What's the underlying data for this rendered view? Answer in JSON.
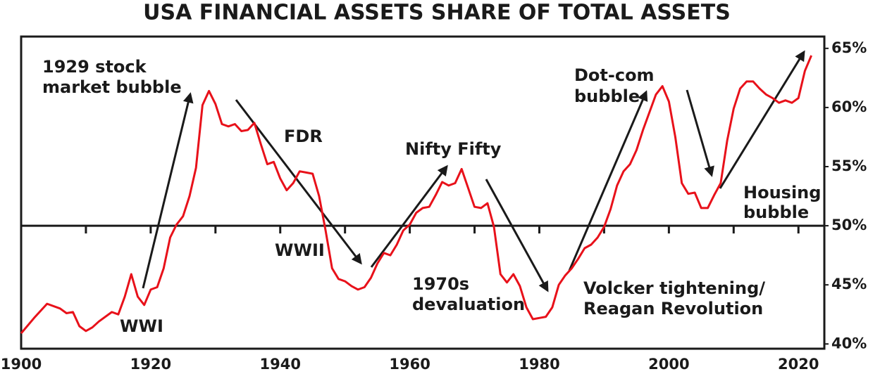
{
  "chart_data": {
    "type": "line",
    "title": "USA FINANCIAL ASSETS SHARE OF TOTAL ASSETS",
    "x": [
      1900,
      1902,
      1904,
      1906,
      1907,
      1908,
      1909,
      1910,
      1911,
      1912,
      1914,
      1915,
      1916,
      1917,
      1918,
      1919,
      1920,
      1921,
      1922,
      1923,
      1924,
      1925,
      1926,
      1927,
      1928,
      1929,
      1930,
      1931,
      1932,
      1933,
      1934,
      1935,
      1936,
      1937,
      1938,
      1939,
      1940,
      1941,
      1942,
      1943,
      1944,
      1945,
      1946,
      1947,
      1948,
      1949,
      1950,
      1951,
      1952,
      1953,
      1954,
      1955,
      1956,
      1957,
      1958,
      1959,
      1960,
      1961,
      1962,
      1963,
      1964,
      1965,
      1966,
      1967,
      1968,
      1969,
      1970,
      1971,
      1972,
      1973,
      1974,
      1975,
      1976,
      1977,
      1978,
      1979,
      1980,
      1981,
      1982,
      1983,
      1984,
      1985,
      1986,
      1987,
      1988,
      1989,
      1990,
      1991,
      1992,
      1993,
      1994,
      1995,
      1996,
      1997,
      1998,
      1999,
      2000,
      2001,
      2002,
      2003,
      2004,
      2005,
      2006,
      2007,
      2008,
      2009,
      2010,
      2011,
      2012,
      2013,
      2014,
      2015,
      2016,
      2017,
      2018,
      2019,
      2020,
      2021,
      2022
    ],
    "values": [
      40.9,
      42.2,
      43.4,
      43.0,
      42.6,
      42.7,
      41.5,
      41.1,
      41.4,
      41.9,
      42.7,
      42.5,
      44.0,
      45.9,
      44.0,
      43.3,
      44.6,
      44.8,
      46.4,
      49.0,
      50.1,
      50.8,
      52.5,
      54.9,
      60.2,
      61.4,
      60.3,
      58.6,
      58.4,
      58.6,
      58.0,
      58.1,
      58.7,
      56.9,
      55.2,
      55.4,
      54.0,
      53.0,
      53.6,
      54.6,
      54.5,
      54.4,
      52.5,
      49.6,
      46.4,
      45.5,
      45.3,
      44.9,
      44.6,
      44.8,
      45.6,
      46.8,
      47.7,
      47.5,
      48.4,
      49.6,
      50.1,
      51.1,
      51.5,
      51.6,
      52.6,
      53.7,
      53.4,
      53.6,
      54.8,
      53.2,
      51.6,
      51.5,
      51.9,
      49.9,
      45.9,
      45.2,
      45.9,
      44.9,
      43.1,
      42.1,
      42.2,
      42.3,
      43.1,
      45.0,
      45.8,
      46.4,
      47.2,
      48.1,
      48.4,
      49.0,
      49.9,
      51.4,
      53.4,
      54.6,
      55.2,
      56.4,
      58.1,
      59.6,
      61.1,
      61.8,
      60.5,
      57.5,
      53.6,
      52.7,
      52.8,
      51.5,
      51.5,
      52.6,
      53.6,
      57.2,
      59.9,
      61.6,
      62.2,
      62.2,
      61.6,
      61.1,
      60.8,
      60.4,
      60.6,
      60.4,
      60.8,
      63.1,
      64.4
    ],
    "color": "#e8111a",
    "xlim": [
      1900,
      2024
    ],
    "ylim": [
      39.6,
      66
    ],
    "xticks": [
      1900,
      1920,
      1940,
      1960,
      1980,
      2000,
      2020
    ],
    "minor_xticks": [
      1910,
      1930,
      1950,
      1970,
      1990,
      2010
    ],
    "yticks": [
      {
        "value": 40,
        "label": "40%"
      },
      {
        "value": 45,
        "label": "45%"
      },
      {
        "value": 50,
        "label": "50%"
      },
      {
        "value": 55,
        "label": "55%"
      },
      {
        "value": 60,
        "label": "60%"
      },
      {
        "value": 65,
        "label": "65%"
      }
    ],
    "reference_line": 50,
    "annotations": [
      "1929 stock",
      "market bubble",
      "FDR",
      "WWII",
      "WWI",
      "Nifty Fifty",
      "1970s",
      "devaluation",
      "Dot-com",
      "bubble",
      "Housing",
      "bubble",
      "Volcker tightening/",
      "Reagan Revolution"
    ]
  }
}
